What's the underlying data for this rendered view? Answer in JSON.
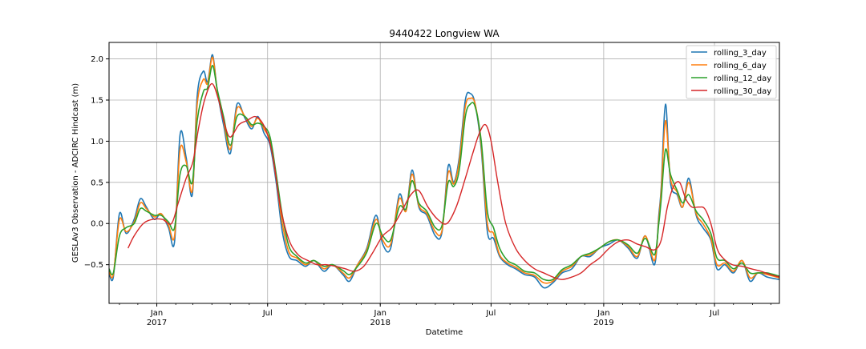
{
  "chart_data": {
    "type": "line",
    "title": "9440422 Longview WA",
    "xlabel": "Datetime",
    "ylabel": "GESLAv3 Observation - ADCIRC Hindcast (m)",
    "xlim": [
      "2016-10-15",
      "2019-10-15"
    ],
    "ylim": [
      -0.97,
      2.2
    ],
    "y_ticks": [
      -0.5,
      0.0,
      0.5,
      1.0,
      1.5,
      2.0
    ],
    "y_tick_labels": [
      "−0.5",
      "0.0",
      "0.5",
      "1.0",
      "1.5",
      "2.0"
    ],
    "x_ticks": [
      {
        "date": "2017-01-01",
        "label": "Jan",
        "sublabel": "2017"
      },
      {
        "date": "2017-07-01",
        "label": "Jul",
        "sublabel": ""
      },
      {
        "date": "2018-01-01",
        "label": "Jan",
        "sublabel": "2018"
      },
      {
        "date": "2018-07-01",
        "label": "Jul",
        "sublabel": ""
      },
      {
        "date": "2019-01-01",
        "label": "Jan",
        "sublabel": "2019"
      },
      {
        "date": "2019-07-01",
        "label": "Jul",
        "sublabel": ""
      }
    ],
    "grid": true,
    "legend_position": "top-right",
    "series": [
      {
        "name": "rolling_3_day",
        "color": "#1f77b4",
        "x": [
          "2016-10-15",
          "2016-10-22",
          "2016-11-01",
          "2016-11-12",
          "2016-11-25",
          "2016-12-05",
          "2016-12-15",
          "2016-12-28",
          "2017-01-08",
          "2017-01-20",
          "2017-01-30",
          "2017-02-08",
          "2017-02-18",
          "2017-02-28",
          "2017-03-08",
          "2017-03-18",
          "2017-03-25",
          "2017-04-02",
          "2017-04-10",
          "2017-04-20",
          "2017-05-01",
          "2017-05-12",
          "2017-05-25",
          "2017-06-05",
          "2017-06-15",
          "2017-06-25",
          "2017-07-05",
          "2017-07-15",
          "2017-07-25",
          "2017-08-05",
          "2017-08-18",
          "2017-09-01",
          "2017-09-15",
          "2017-10-01",
          "2017-10-15",
          "2017-11-01",
          "2017-11-12",
          "2017-11-25",
          "2017-12-10",
          "2017-12-25",
          "2018-01-05",
          "2018-01-18",
          "2018-02-01",
          "2018-02-12",
          "2018-02-22",
          "2018-03-05",
          "2018-03-18",
          "2018-04-01",
          "2018-04-12",
          "2018-04-22",
          "2018-05-01",
          "2018-05-10",
          "2018-05-20",
          "2018-05-28",
          "2018-06-05",
          "2018-06-15",
          "2018-06-25",
          "2018-07-05",
          "2018-07-15",
          "2018-07-28",
          "2018-08-10",
          "2018-08-25",
          "2018-09-10",
          "2018-09-25",
          "2018-10-10",
          "2018-10-25",
          "2018-11-10",
          "2018-11-25",
          "2018-12-10",
          "2018-12-25",
          "2019-01-10",
          "2019-01-25",
          "2019-02-10",
          "2019-02-25",
          "2019-03-10",
          "2019-03-25",
          "2019-04-01",
          "2019-04-05",
          "2019-04-12",
          "2019-04-20",
          "2019-05-01",
          "2019-05-10",
          "2019-05-20",
          "2019-06-01",
          "2019-06-12",
          "2019-06-25",
          "2019-07-05",
          "2019-07-18",
          "2019-08-01",
          "2019-08-15",
          "2019-08-28",
          "2019-09-10",
          "2019-09-25",
          "2019-10-15"
        ],
        "y": [
          -0.6,
          -0.65,
          0.12,
          -0.12,
          0.05,
          0.3,
          0.2,
          0.05,
          0.12,
          -0.05,
          -0.22,
          1.08,
          0.8,
          0.35,
          1.55,
          1.85,
          1.72,
          2.05,
          1.6,
          1.2,
          0.85,
          1.45,
          1.28,
          1.15,
          1.3,
          1.1,
          0.95,
          0.5,
          -0.1,
          -0.4,
          -0.45,
          -0.52,
          -0.45,
          -0.58,
          -0.5,
          -0.62,
          -0.7,
          -0.5,
          -0.3,
          0.1,
          -0.25,
          -0.3,
          0.35,
          0.15,
          0.65,
          0.2,
          0.1,
          -0.15,
          -0.1,
          0.7,
          0.5,
          0.8,
          1.5,
          1.58,
          1.45,
          0.9,
          -0.1,
          -0.18,
          -0.4,
          -0.5,
          -0.55,
          -0.62,
          -0.65,
          -0.78,
          -0.72,
          -0.6,
          -0.55,
          -0.4,
          -0.4,
          -0.3,
          -0.25,
          -0.2,
          -0.3,
          -0.42,
          -0.15,
          -0.5,
          0.1,
          0.45,
          1.45,
          0.5,
          0.35,
          0.2,
          0.55,
          0.1,
          -0.05,
          -0.2,
          -0.55,
          -0.5,
          -0.6,
          -0.45,
          -0.7,
          -0.6,
          -0.65,
          -0.68
        ]
      },
      {
        "name": "rolling_6_day",
        "color": "#ff7f0e",
        "x": [
          "2016-10-15",
          "2016-10-22",
          "2016-11-01",
          "2016-11-12",
          "2016-11-25",
          "2016-12-05",
          "2016-12-15",
          "2016-12-28",
          "2017-01-08",
          "2017-01-20",
          "2017-01-30",
          "2017-02-08",
          "2017-02-18",
          "2017-02-28",
          "2017-03-08",
          "2017-03-18",
          "2017-03-25",
          "2017-04-02",
          "2017-04-10",
          "2017-04-20",
          "2017-05-01",
          "2017-05-12",
          "2017-05-25",
          "2017-06-05",
          "2017-06-15",
          "2017-06-25",
          "2017-07-05",
          "2017-07-15",
          "2017-07-25",
          "2017-08-05",
          "2017-08-18",
          "2017-09-01",
          "2017-09-15",
          "2017-10-01",
          "2017-10-15",
          "2017-11-01",
          "2017-11-12",
          "2017-11-25",
          "2017-12-10",
          "2017-12-25",
          "2018-01-05",
          "2018-01-18",
          "2018-02-01",
          "2018-02-12",
          "2018-02-22",
          "2018-03-05",
          "2018-03-18",
          "2018-04-01",
          "2018-04-12",
          "2018-04-22",
          "2018-05-01",
          "2018-05-10",
          "2018-05-20",
          "2018-05-28",
          "2018-06-05",
          "2018-06-15",
          "2018-06-25",
          "2018-07-05",
          "2018-07-15",
          "2018-07-28",
          "2018-08-10",
          "2018-08-25",
          "2018-09-10",
          "2018-09-25",
          "2018-10-10",
          "2018-10-25",
          "2018-11-10",
          "2018-11-25",
          "2018-12-10",
          "2018-12-25",
          "2019-01-10",
          "2019-01-25",
          "2019-02-10",
          "2019-02-25",
          "2019-03-10",
          "2019-03-25",
          "2019-04-01",
          "2019-04-05",
          "2019-04-12",
          "2019-04-20",
          "2019-05-01",
          "2019-05-10",
          "2019-05-20",
          "2019-06-01",
          "2019-06-12",
          "2019-06-25",
          "2019-07-05",
          "2019-07-18",
          "2019-08-01",
          "2019-08-15",
          "2019-08-28",
          "2019-09-10",
          "2019-09-25",
          "2019-10-15"
        ],
        "y": [
          -0.58,
          -0.62,
          0.05,
          -0.1,
          0.02,
          0.25,
          0.18,
          0.08,
          0.12,
          -0.02,
          -0.15,
          0.9,
          0.75,
          0.4,
          1.45,
          1.75,
          1.7,
          2.02,
          1.6,
          1.25,
          0.9,
          1.4,
          1.3,
          1.18,
          1.28,
          1.15,
          1.0,
          0.55,
          0.0,
          -0.35,
          -0.42,
          -0.5,
          -0.45,
          -0.55,
          -0.5,
          -0.6,
          -0.66,
          -0.5,
          -0.32,
          0.05,
          -0.2,
          -0.25,
          0.3,
          0.15,
          0.6,
          0.22,
          0.12,
          -0.1,
          -0.08,
          0.62,
          0.48,
          0.75,
          1.42,
          1.52,
          1.45,
          0.95,
          0.0,
          -0.12,
          -0.38,
          -0.48,
          -0.53,
          -0.6,
          -0.63,
          -0.72,
          -0.7,
          -0.58,
          -0.52,
          -0.4,
          -0.38,
          -0.3,
          -0.22,
          -0.2,
          -0.28,
          -0.4,
          -0.15,
          -0.45,
          0.05,
          0.4,
          1.25,
          0.55,
          0.38,
          0.2,
          0.5,
          0.12,
          0.0,
          -0.18,
          -0.5,
          -0.48,
          -0.58,
          -0.45,
          -0.66,
          -0.6,
          -0.62,
          -0.66
        ]
      },
      {
        "name": "rolling_12_day",
        "color": "#2ca02c",
        "x": [
          "2016-10-15",
          "2016-10-22",
          "2016-11-01",
          "2016-11-12",
          "2016-11-25",
          "2016-12-05",
          "2016-12-15",
          "2016-12-28",
          "2017-01-08",
          "2017-01-20",
          "2017-01-30",
          "2017-02-08",
          "2017-02-18",
          "2017-02-28",
          "2017-03-08",
          "2017-03-18",
          "2017-03-25",
          "2017-04-02",
          "2017-04-10",
          "2017-04-20",
          "2017-05-01",
          "2017-05-12",
          "2017-05-25",
          "2017-06-05",
          "2017-06-15",
          "2017-06-25",
          "2017-07-05",
          "2017-07-15",
          "2017-07-25",
          "2017-08-05",
          "2017-08-18",
          "2017-09-01",
          "2017-09-15",
          "2017-10-01",
          "2017-10-15",
          "2017-11-01",
          "2017-11-12",
          "2017-11-25",
          "2017-12-10",
          "2017-12-25",
          "2018-01-05",
          "2018-01-18",
          "2018-02-01",
          "2018-02-12",
          "2018-02-22",
          "2018-03-05",
          "2018-03-18",
          "2018-04-01",
          "2018-04-12",
          "2018-04-22",
          "2018-05-01",
          "2018-05-10",
          "2018-05-20",
          "2018-05-28",
          "2018-06-05",
          "2018-06-15",
          "2018-06-25",
          "2018-07-05",
          "2018-07-15",
          "2018-07-28",
          "2018-08-10",
          "2018-08-25",
          "2018-09-10",
          "2018-09-25",
          "2018-10-10",
          "2018-10-25",
          "2018-11-10",
          "2018-11-25",
          "2018-12-10",
          "2018-12-25",
          "2019-01-10",
          "2019-01-25",
          "2019-02-10",
          "2019-02-25",
          "2019-03-10",
          "2019-03-25",
          "2019-04-01",
          "2019-04-05",
          "2019-04-12",
          "2019-04-20",
          "2019-05-01",
          "2019-05-10",
          "2019-05-20",
          "2019-06-01",
          "2019-06-12",
          "2019-06-25",
          "2019-07-05",
          "2019-07-18",
          "2019-08-01",
          "2019-08-15",
          "2019-08-28",
          "2019-09-10",
          "2019-09-25",
          "2019-10-15"
        ],
        "y": [
          -0.55,
          -0.6,
          -0.15,
          -0.05,
          0.0,
          0.18,
          0.15,
          0.1,
          0.1,
          0.02,
          -0.05,
          0.6,
          0.7,
          0.5,
          1.25,
          1.6,
          1.65,
          1.92,
          1.62,
          1.3,
          0.95,
          1.3,
          1.3,
          1.2,
          1.22,
          1.18,
          1.05,
          0.6,
          0.1,
          -0.28,
          -0.4,
          -0.48,
          -0.45,
          -0.52,
          -0.5,
          -0.57,
          -0.62,
          -0.52,
          -0.35,
          0.0,
          -0.15,
          -0.2,
          0.2,
          0.18,
          0.52,
          0.25,
          0.15,
          -0.05,
          -0.02,
          0.5,
          0.45,
          0.65,
          1.3,
          1.45,
          1.42,
          1.0,
          0.15,
          -0.05,
          -0.3,
          -0.45,
          -0.5,
          -0.58,
          -0.6,
          -0.68,
          -0.68,
          -0.56,
          -0.5,
          -0.4,
          -0.36,
          -0.3,
          -0.22,
          -0.2,
          -0.26,
          -0.36,
          -0.18,
          -0.38,
          0.0,
          0.3,
          0.9,
          0.6,
          0.4,
          0.25,
          0.35,
          0.15,
          0.05,
          -0.12,
          -0.42,
          -0.45,
          -0.55,
          -0.48,
          -0.6,
          -0.6,
          -0.6,
          -0.64
        ]
      },
      {
        "name": "rolling_30_day",
        "color": "#d62728",
        "x": [
          "2016-11-15",
          "2016-11-25",
          "2016-12-10",
          "2016-12-25",
          "2017-01-10",
          "2017-01-25",
          "2017-02-05",
          "2017-02-18",
          "2017-03-01",
          "2017-03-10",
          "2017-03-20",
          "2017-04-01",
          "2017-04-12",
          "2017-04-22",
          "2017-05-01",
          "2017-05-15",
          "2017-05-28",
          "2017-06-10",
          "2017-06-20",
          "2017-06-30",
          "2017-07-10",
          "2017-07-22",
          "2017-08-05",
          "2017-08-20",
          "2017-09-05",
          "2017-09-20",
          "2017-10-05",
          "2017-10-20",
          "2017-11-05",
          "2017-11-20",
          "2017-12-05",
          "2017-12-20",
          "2018-01-05",
          "2018-01-20",
          "2018-02-05",
          "2018-02-20",
          "2018-03-05",
          "2018-03-20",
          "2018-04-05",
          "2018-04-20",
          "2018-05-05",
          "2018-05-20",
          "2018-06-01",
          "2018-06-12",
          "2018-06-22",
          "2018-07-01",
          "2018-07-12",
          "2018-07-25",
          "2018-08-10",
          "2018-08-25",
          "2018-09-10",
          "2018-09-25",
          "2018-10-10",
          "2018-10-25",
          "2018-11-10",
          "2018-11-25",
          "2018-12-10",
          "2018-12-25",
          "2019-01-10",
          "2019-01-25",
          "2019-02-10",
          "2019-02-25",
          "2019-03-10",
          "2019-03-25",
          "2019-04-05",
          "2019-04-15",
          "2019-04-25",
          "2019-05-05",
          "2019-05-15",
          "2019-05-25",
          "2019-06-05",
          "2019-06-15",
          "2019-06-25",
          "2019-07-05",
          "2019-07-15",
          "2019-07-30",
          "2019-08-15",
          "2019-08-30",
          "2019-09-15",
          "2019-09-30",
          "2019-10-15"
        ],
        "y": [
          -0.3,
          -0.15,
          0.0,
          0.05,
          0.05,
          0.0,
          0.25,
          0.55,
          0.75,
          1.15,
          1.5,
          1.7,
          1.5,
          1.2,
          1.05,
          1.2,
          1.25,
          1.3,
          1.25,
          1.1,
          0.8,
          0.2,
          -0.2,
          -0.38,
          -0.45,
          -0.5,
          -0.5,
          -0.52,
          -0.55,
          -0.58,
          -0.52,
          -0.35,
          -0.15,
          -0.05,
          0.15,
          0.35,
          0.4,
          0.2,
          0.05,
          0.0,
          0.2,
          0.55,
          0.85,
          1.1,
          1.2,
          1.0,
          0.5,
          0.0,
          -0.3,
          -0.45,
          -0.55,
          -0.6,
          -0.65,
          -0.68,
          -0.65,
          -0.6,
          -0.5,
          -0.42,
          -0.3,
          -0.22,
          -0.2,
          -0.25,
          -0.28,
          -0.32,
          -0.2,
          0.2,
          0.45,
          0.5,
          0.3,
          0.2,
          0.2,
          0.18,
          0.0,
          -0.3,
          -0.42,
          -0.5,
          -0.52,
          -0.55,
          -0.58,
          -0.62,
          -0.65
        ]
      }
    ]
  }
}
